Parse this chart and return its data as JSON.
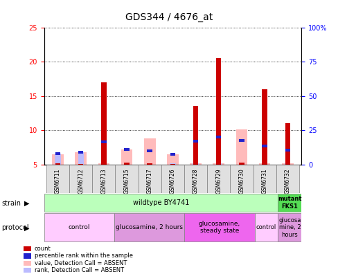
{
  "title": "GDS344 / 4676_at",
  "samples": [
    "GSM6711",
    "GSM6712",
    "GSM6713",
    "GSM6715",
    "GSM6717",
    "GSM6726",
    "GSM6728",
    "GSM6729",
    "GSM6730",
    "GSM6731",
    "GSM6732"
  ],
  "count_values": [
    5.2,
    5.1,
    17.0,
    5.3,
    5.2,
    5.1,
    13.5,
    20.5,
    5.3,
    16.0,
    11.0
  ],
  "rank_values": [
    6.6,
    6.8,
    8.3,
    7.2,
    7.0,
    6.5,
    8.4,
    9.0,
    8.5,
    7.7,
    7.1
  ],
  "absent_value": [
    6.5,
    6.8,
    5.2,
    7.2,
    8.8,
    6.5,
    5.2,
    5.2,
    10.1,
    5.2,
    5.2
  ],
  "absent_rank": [
    6.6,
    6.8,
    5.2,
    5.2,
    5.2,
    5.2,
    5.2,
    5.2,
    5.2,
    5.2,
    5.2
  ],
  "ylim_left": [
    5,
    25
  ],
  "ylim_right": [
    0,
    100
  ],
  "yticks_left": [
    5,
    10,
    15,
    20,
    25
  ],
  "yticks_right": [
    0,
    25,
    50,
    75,
    100
  ],
  "ytick_labels_right": [
    "0",
    "25",
    "50",
    "75",
    "100%"
  ],
  "color_count": "#cc0000",
  "color_rank": "#2222cc",
  "color_absent_value": "#ffbbbb",
  "color_absent_rank": "#bbbbff",
  "strain_wildtype_label": "wildtype BY4741",
  "strain_mutant_label": "mutant\nFKS1",
  "protocol_colors": [
    "#ffccff",
    "#dd99dd",
    "#ee66ee",
    "#ffccff",
    "#dd99dd"
  ],
  "protocol_labels": [
    "control",
    "glucosamine, 2 hours",
    "glucosamine,\nsteady state",
    "control",
    "glucosa\nmine, 2\nhours"
  ],
  "protocol_widths": [
    3,
    3,
    3,
    1,
    1
  ],
  "protocol_starts": [
    0,
    3,
    6,
    9,
    10
  ],
  "legend_items": [
    {
      "color": "#cc0000",
      "label": "count",
      "marker": "s"
    },
    {
      "color": "#2222cc",
      "label": "percentile rank within the sample",
      "marker": "s"
    },
    {
      "color": "#ffbbbb",
      "label": "value, Detection Call = ABSENT",
      "marker": "s"
    },
    {
      "color": "#bbbbff",
      "label": "rank, Detection Call = ABSENT",
      "marker": "s"
    }
  ],
  "fig_width": 4.89,
  "fig_height": 3.96,
  "dpi": 100
}
